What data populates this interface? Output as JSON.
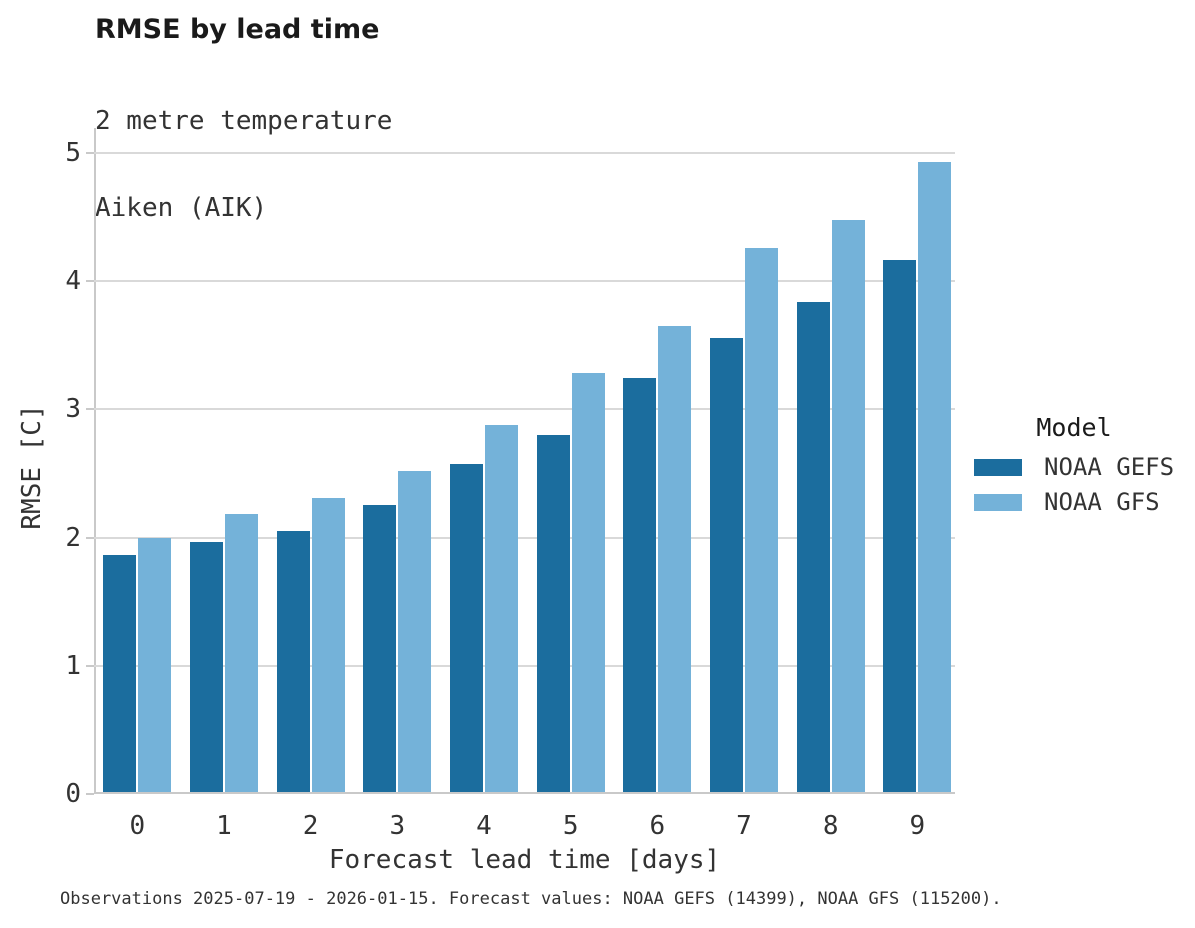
{
  "header": {
    "title": "RMSE by lead time",
    "subtitle1": "2 metre temperature",
    "subtitle2": "Aiken (AIK)"
  },
  "footer": {
    "caption": "Observations 2025-07-19 - 2026-01-15. Forecast values: NOAA GEFS (14399), NOAA GFS (115200)."
  },
  "colors": {
    "grid": "#d9d9d9",
    "spine": "#c9c9c9",
    "series_dark": "#1b6d9e",
    "series_light": "#74b2d9"
  },
  "chart_data": {
    "type": "bar",
    "title": "RMSE by lead time",
    "subtitle": [
      "2 metre temperature",
      "Aiken (AIK)"
    ],
    "xlabel": "Forecast lead time [days]",
    "ylabel": "RMSE [C]",
    "legend_title": "Model",
    "legend_position": "right",
    "grid": true,
    "ylim": [
      0,
      5
    ],
    "yticks": [
      0,
      1,
      2,
      3,
      4,
      5
    ],
    "categories": [
      "0",
      "1",
      "2",
      "3",
      "4",
      "5",
      "6",
      "7",
      "8",
      "9"
    ],
    "series": [
      {
        "name": "NOAA GEFS",
        "color": "#1b6d9e",
        "values": [
          1.86,
          1.96,
          2.04,
          2.25,
          2.57,
          2.79,
          3.24,
          3.55,
          3.83,
          4.16
        ]
      },
      {
        "name": "NOAA GFS",
        "color": "#74b2d9",
        "values": [
          1.99,
          2.18,
          2.3,
          2.51,
          2.87,
          3.28,
          3.64,
          4.25,
          4.47,
          4.92
        ]
      }
    ]
  }
}
